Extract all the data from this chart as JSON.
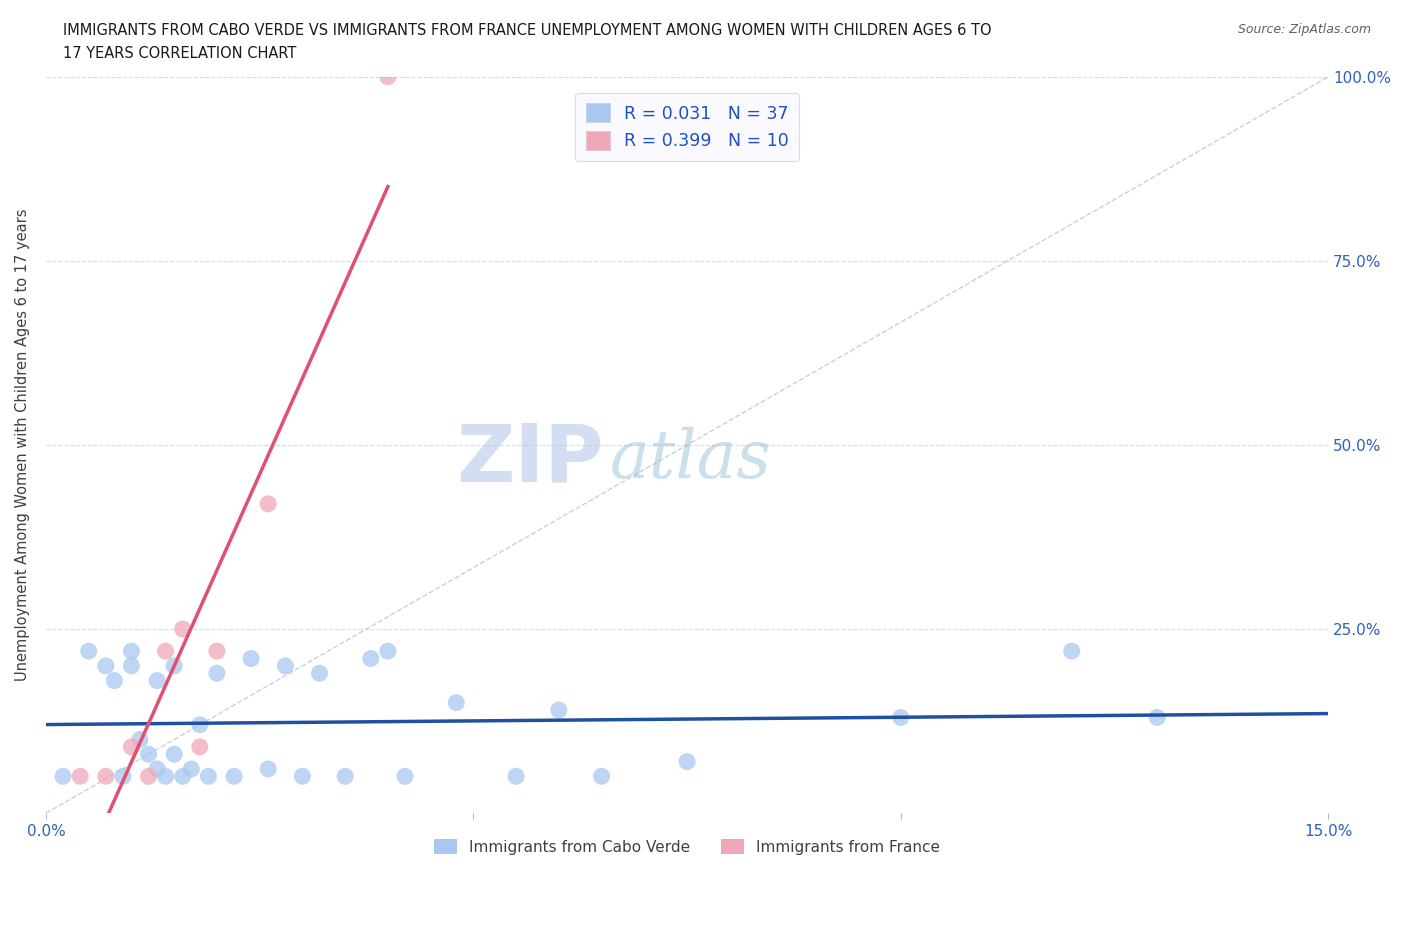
{
  "title_line1": "IMMIGRANTS FROM CABO VERDE VS IMMIGRANTS FROM FRANCE UNEMPLOYMENT AMONG WOMEN WITH CHILDREN AGES 6 TO",
  "title_line2": "17 YEARS CORRELATION CHART",
  "source": "Source: ZipAtlas.com",
  "ylabel": "Unemployment Among Women with Children Ages 6 to 17 years",
  "x_min": 0.0,
  "x_max": 0.15,
  "y_min": 0.0,
  "y_max": 1.0,
  "cabo_verde_R": 0.031,
  "cabo_verde_N": 37,
  "france_R": 0.399,
  "france_N": 10,
  "cabo_verde_color": "#a8c8f0",
  "france_color": "#f0a8b8",
  "cabo_verde_line_color": "#2050a0",
  "france_line_color": "#e05070",
  "diagonal_color": "#c8cfe0",
  "watermark_zip": "ZIP",
  "watermark_atlas": "atlas",
  "watermark_color_zip": "#b0c4e8",
  "watermark_color_atlas": "#8fb8d8",
  "cabo_verde_x": [
    0.002,
    0.005,
    0.007,
    0.008,
    0.009,
    0.01,
    0.01,
    0.011,
    0.012,
    0.013,
    0.013,
    0.014,
    0.015,
    0.015,
    0.016,
    0.017,
    0.018,
    0.019,
    0.02,
    0.022,
    0.024,
    0.026,
    0.028,
    0.03,
    0.032,
    0.035,
    0.038,
    0.04,
    0.042,
    0.048,
    0.055,
    0.06,
    0.065,
    0.075,
    0.1,
    0.12,
    0.13
  ],
  "cabo_verde_y": [
    0.05,
    0.22,
    0.2,
    0.18,
    0.05,
    0.22,
    0.2,
    0.1,
    0.08,
    0.06,
    0.18,
    0.05,
    0.2,
    0.08,
    0.05,
    0.06,
    0.12,
    0.05,
    0.19,
    0.05,
    0.21,
    0.06,
    0.2,
    0.05,
    0.19,
    0.05,
    0.21,
    0.22,
    0.05,
    0.15,
    0.05,
    0.14,
    0.05,
    0.07,
    0.13,
    0.22,
    0.13
  ],
  "france_x": [
    0.004,
    0.007,
    0.01,
    0.012,
    0.014,
    0.016,
    0.018,
    0.02,
    0.026,
    0.04
  ],
  "france_y": [
    0.05,
    0.05,
    0.09,
    0.05,
    0.22,
    0.25,
    0.09,
    0.22,
    0.42,
    1.0
  ],
  "legend_box_color": "#f8f8ff",
  "legend_R_color": "#2050c0",
  "grid_color": "#d0d8e8",
  "tick_color": "#3060c0"
}
